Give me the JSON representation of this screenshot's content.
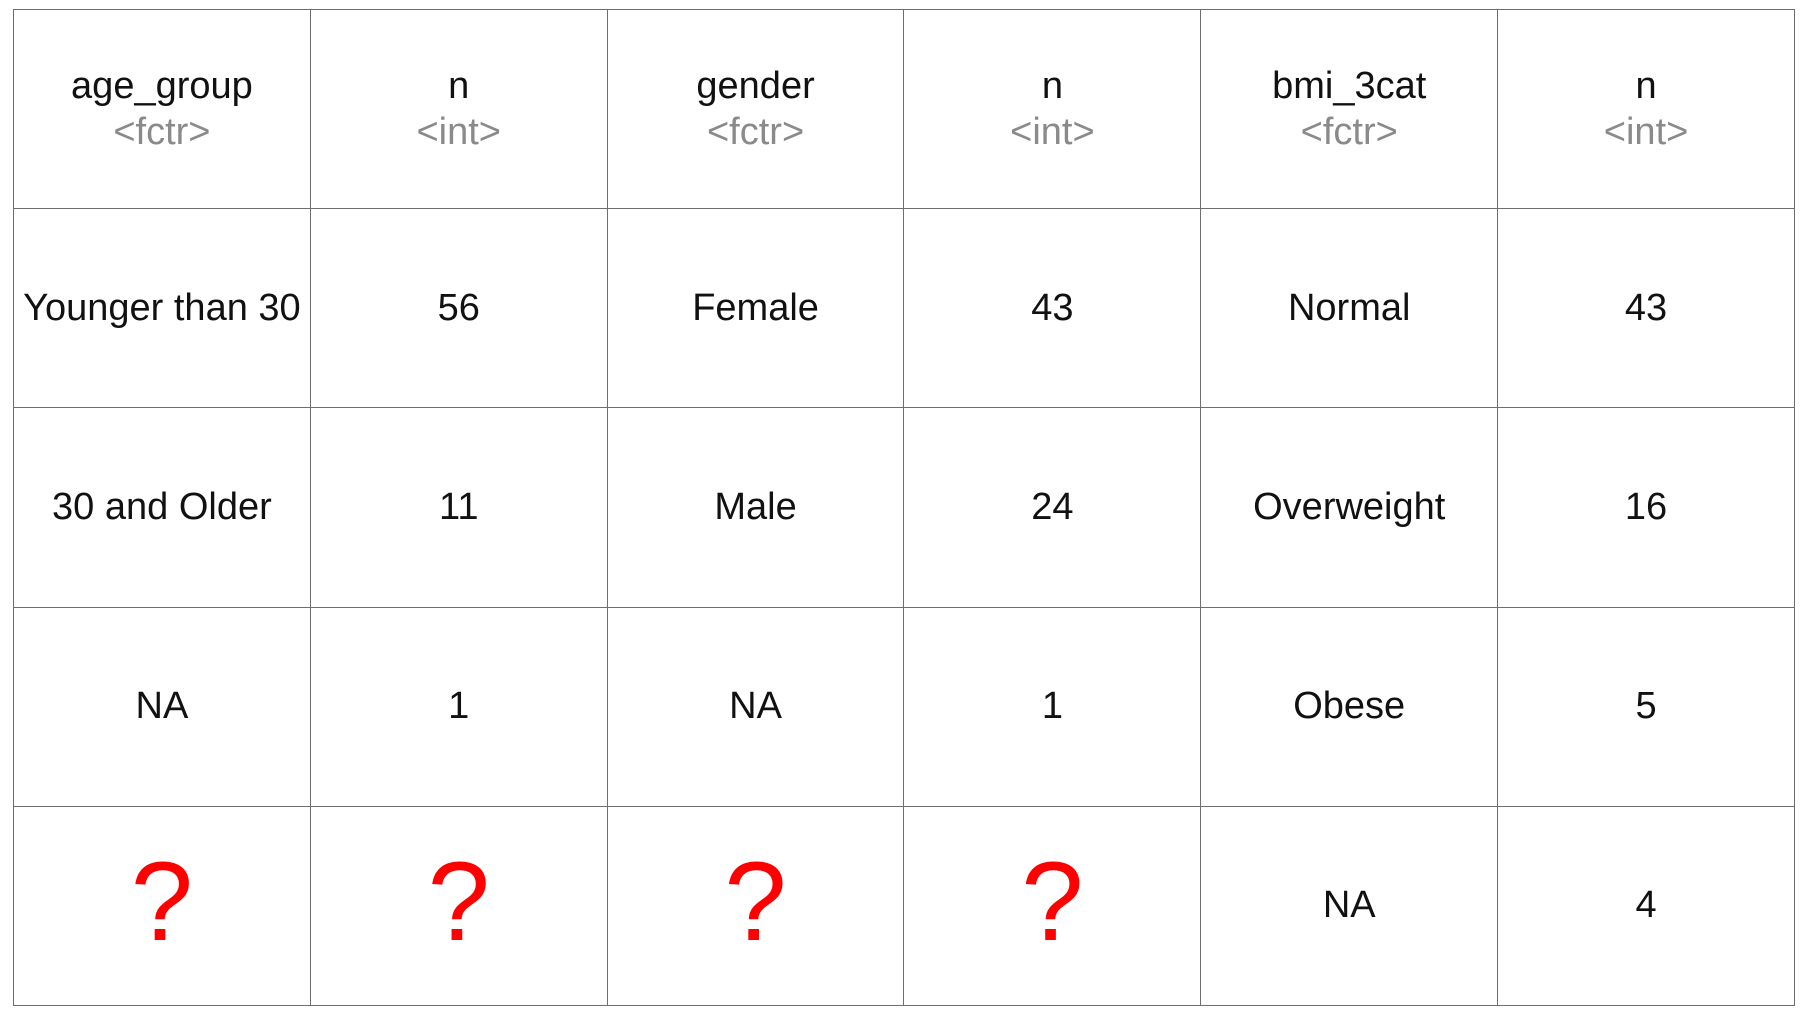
{
  "table": {
    "columns": [
      {
        "name": "age_group",
        "type": "<fctr>"
      },
      {
        "name": "n",
        "type": "<int>"
      },
      {
        "name": "gender",
        "type": "<fctr>"
      },
      {
        "name": "n",
        "type": "<int>"
      },
      {
        "name": "bmi_3cat",
        "type": "<fctr>"
      },
      {
        "name": "n",
        "type": "<int>"
      }
    ],
    "rows": [
      [
        "Younger than 30",
        "56",
        "Female",
        "43",
        "Normal",
        "43"
      ],
      [
        "30 and Older",
        "11",
        "Male",
        "24",
        "Overweight",
        "16"
      ],
      [
        "NA",
        "1",
        "NA",
        "1",
        "Obese",
        "5"
      ],
      [
        "?",
        "?",
        "?",
        "?",
        "NA",
        "4"
      ]
    ]
  },
  "colors": {
    "text": "#111111",
    "type_text": "#8a8a8a",
    "question_mark": "#ff0000",
    "border": "#6e6e6e"
  }
}
